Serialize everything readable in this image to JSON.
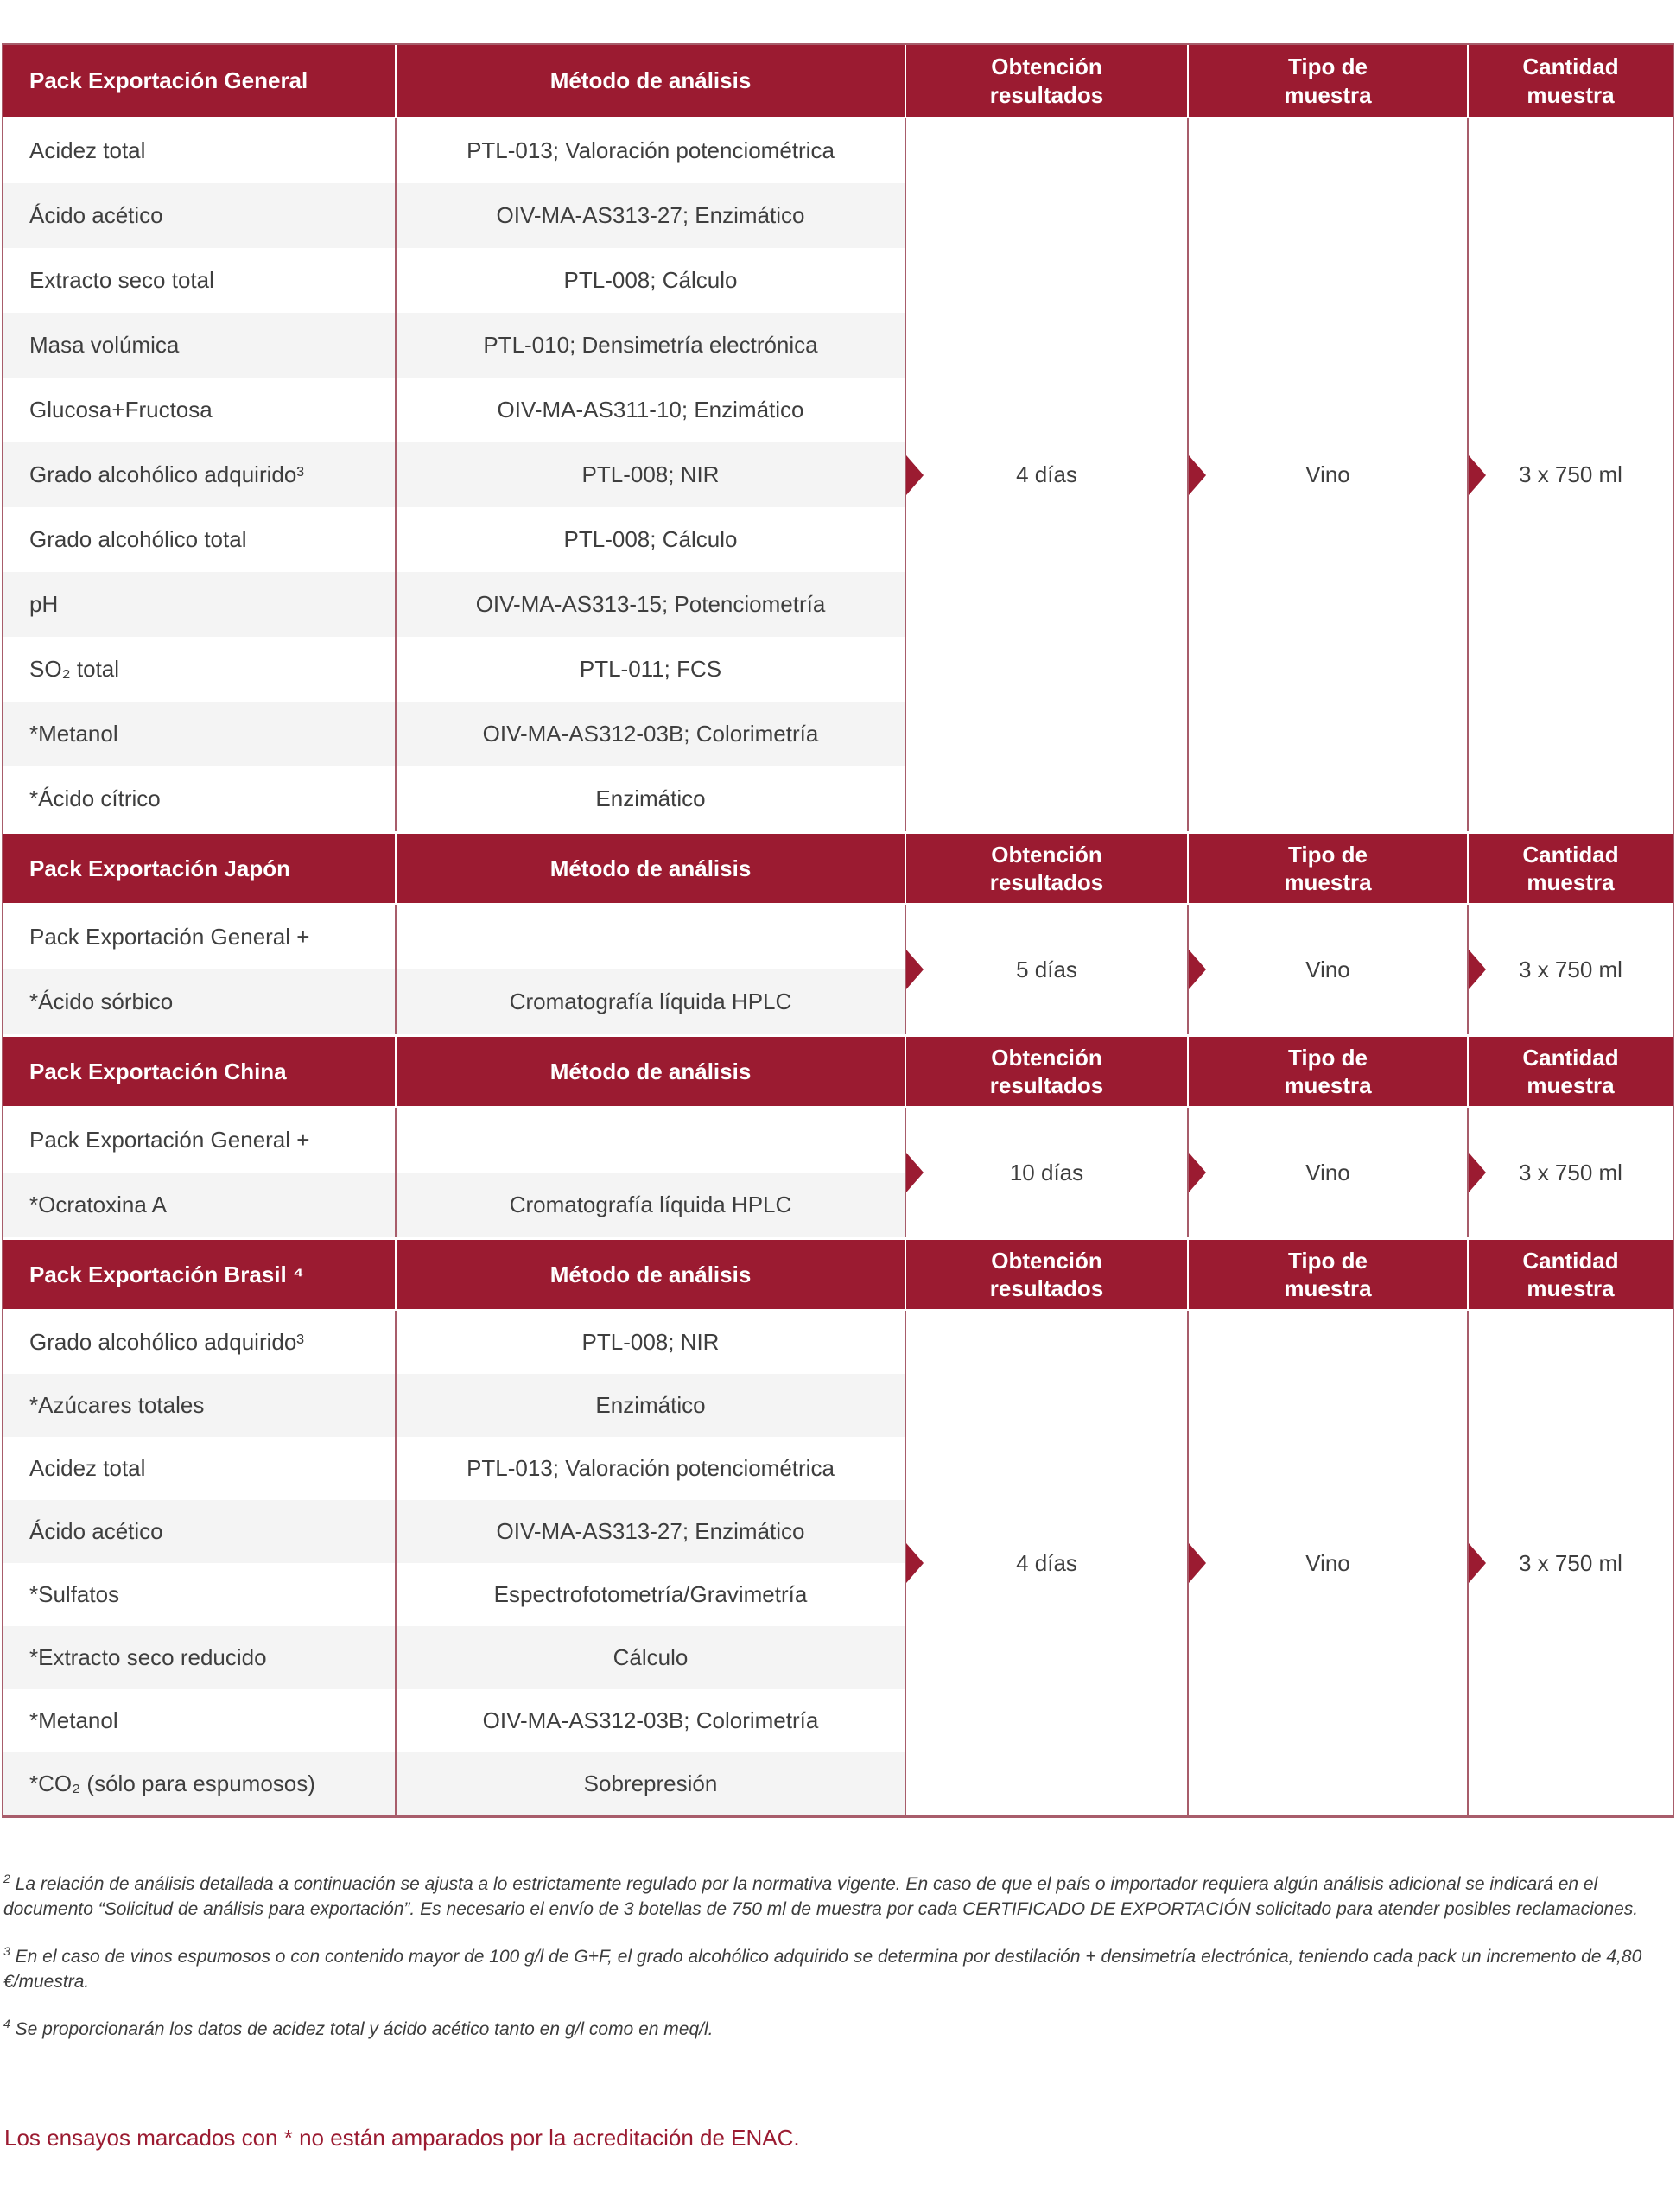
{
  "colors": {
    "header_bg": "#9B1B31",
    "row_alt": "#F4F4F4",
    "table_border": "#A85D6B",
    "body_text": "#3E3E3E",
    "note_text": "#9B1B31"
  },
  "sections": [
    {
      "title": "Pack Exportación General",
      "headers": {
        "method": "Método de análisis",
        "results": [
          "Obtención",
          "resultados"
        ],
        "sample_type": [
          "Tipo de",
          "muestra"
        ],
        "sample_qty": [
          "Cantidad",
          "muestra"
        ]
      },
      "rows": [
        {
          "analysis": "Acidez total",
          "method": "PTL-013; Valoración potenciométrica"
        },
        {
          "analysis": "Ácido acético",
          "method": "OIV-MA-AS313-27; Enzimático"
        },
        {
          "analysis": "Extracto seco total",
          "method": "PTL-008; Cálculo"
        },
        {
          "analysis": "Masa volúmica",
          "method": "PTL-010; Densimetría electrónica"
        },
        {
          "analysis": "Glucosa+Fructosa",
          "method": "OIV-MA-AS311-10; Enzimático"
        },
        {
          "analysis": "Grado alcohólico adquirido³",
          "method": "PTL-008; NIR"
        },
        {
          "analysis": "Grado alcohólico total",
          "method": "PTL-008; Cálculo"
        },
        {
          "analysis": "pH",
          "method": "OIV-MA-AS313-15; Potenciometría"
        },
        {
          "analysis": "SO₂ total",
          "method": "PTL-011; FCS"
        },
        {
          "analysis": "*Metanol",
          "method": "OIV-MA-AS312-03B; Colorimetría"
        },
        {
          "analysis": "*Ácido cítrico",
          "method": "Enzimático"
        }
      ],
      "values": {
        "results": "4 días",
        "sample_type": "Vino",
        "sample_qty": "3 x 750 ml"
      }
    },
    {
      "title": "Pack Exportación Japón",
      "headers": {
        "method": "Método de análisis",
        "results": [
          "Obtención",
          "resultados"
        ],
        "sample_type": [
          "Tipo de",
          "muestra"
        ],
        "sample_qty": [
          "Cantidad",
          "muestra"
        ]
      },
      "rows": [
        {
          "analysis": "Pack Exportación General +",
          "method": ""
        },
        {
          "analysis": "*Ácido sórbico",
          "method": "Cromatografía líquida HPLC"
        }
      ],
      "values": {
        "results": "5 días",
        "sample_type": "Vino",
        "sample_qty": "3 x 750 ml"
      }
    },
    {
      "title": "Pack Exportación China",
      "headers": {
        "method": "Método de análisis",
        "results": [
          "Obtención",
          "resultados"
        ],
        "sample_type": [
          "Tipo de",
          "muestra"
        ],
        "sample_qty": [
          "Cantidad",
          "muestra"
        ]
      },
      "rows": [
        {
          "analysis": "Pack Exportación General +",
          "method": ""
        },
        {
          "analysis": "*Ocratoxina A",
          "method": "Cromatografía líquida HPLC"
        }
      ],
      "values": {
        "results": "10 días",
        "sample_type": "Vino",
        "sample_qty": "3 x 750 ml"
      }
    },
    {
      "title": "Pack Exportación Brasil ⁴",
      "headers": {
        "method": "Método de análisis",
        "results": [
          "Obtención",
          "resultados"
        ],
        "sample_type": [
          "Tipo de",
          "muestra"
        ],
        "sample_qty": [
          "Cantidad",
          "muestra"
        ]
      },
      "rows": [
        {
          "analysis": "Grado alcohólico adquirido³",
          "method": "PTL-008; NIR"
        },
        {
          "analysis": "*Azúcares totales",
          "method": "Enzimático"
        },
        {
          "analysis": "Acidez total",
          "method": "PTL-013; Valoración potenciométrica"
        },
        {
          "analysis": "Ácido acético",
          "method": "OIV-MA-AS313-27; Enzimático"
        },
        {
          "analysis": "*Sulfatos",
          "method": "Espectrofotometría/Gravimetría"
        },
        {
          "analysis": "*Extracto seco reducido",
          "method": "Cálculo"
        },
        {
          "analysis": "*Metanol",
          "method": "OIV-MA-AS312-03B; Colorimetría"
        },
        {
          "analysis": "*CO₂ (sólo para espumosos)",
          "method": "Sobrepresión"
        }
      ],
      "values": {
        "results": "4 días",
        "sample_type": "Vino",
        "sample_qty": "3 x 750 ml"
      }
    }
  ],
  "footnotes": [
    {
      "marker": "2",
      "text": "La relación de análisis detallada a continuación se ajusta a lo estrictamente regulado por la normativa vigente. En caso de que el país o importador requiera algún análisis adicional se indicará en el documento “Solicitud de análisis para exportación”. Es necesario el envío de 3 botellas de 750 ml de muestra por cada CERTIFICADO DE EXPORTACIÓN solicitado para atender posibles reclamaciones."
    },
    {
      "marker": "3",
      "text": "En el caso de vinos espumosos o con contenido mayor de 100 g/l de G+F, el grado alcohólico adquirido se determina por destilación + densimetría electrónica, teniendo cada pack un incremento de 4,80 €/muestra."
    },
    {
      "marker": "4",
      "text": "Se proporcionarán los datos de acidez total y ácido acético tanto en g/l como en meq/l."
    }
  ],
  "enac_note": "Los ensayos marcados con * no están amparados por la acreditación de ENAC."
}
